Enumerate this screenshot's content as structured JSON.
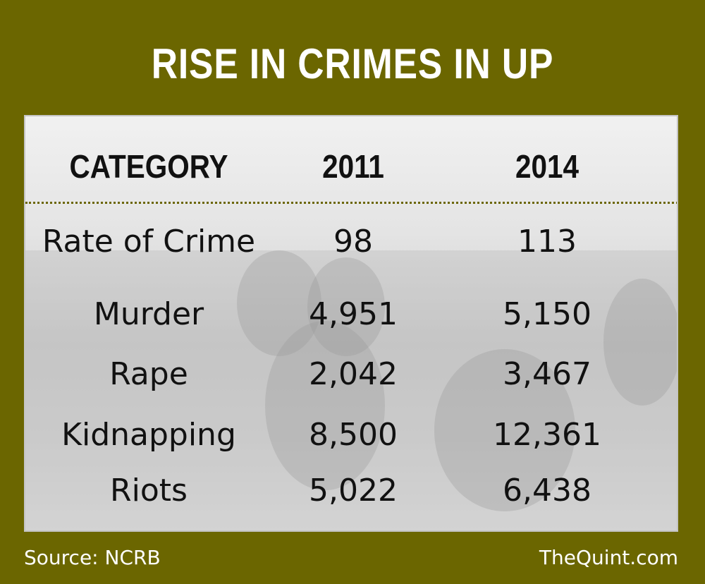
{
  "title": "RISE IN CRIMES IN UP",
  "chart_data": {
    "type": "table",
    "title": "RISE IN CRIMES IN UP",
    "columns": [
      "CATEGORY",
      "2011",
      "2014"
    ],
    "rows": [
      [
        "Rate of Crime",
        "98",
        "113"
      ],
      [
        "Murder",
        "4,951",
        "5,150"
      ],
      [
        "Rape",
        "2,042",
        "3,467"
      ],
      [
        "Kidnapping",
        "8,500",
        "12,361"
      ],
      [
        "Riots",
        "5,022",
        "6,438"
      ]
    ]
  },
  "footer": {
    "source": "Source: NCRB",
    "brand": "TheQuint.com"
  },
  "colors": {
    "background": "#6b6600",
    "title": "#ffffff",
    "divider": "#6b6600"
  }
}
